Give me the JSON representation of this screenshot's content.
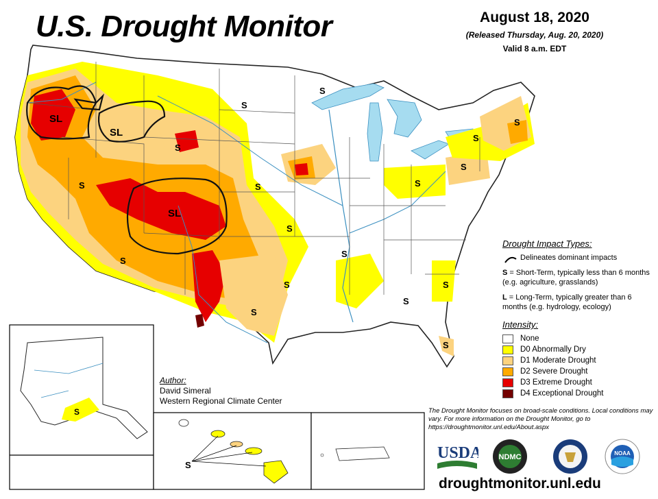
{
  "header": {
    "title": "U.S. Drought Monitor",
    "date": "August 18, 2020",
    "released": "(Released Thursday, Aug. 20, 2020)",
    "valid": "Valid 8 a.m. EDT"
  },
  "impact_types": {
    "heading": "Drought Impact Types:",
    "line_label": "Delineates dominant impacts",
    "short_term_code": "S",
    "short_term_text": "= Short-Term, typically less than 6 months (e.g. agriculture, grasslands)",
    "long_term_code": "L",
    "long_term_text": "= Long-Term, typically greater than 6 months (e.g. hydrology, ecology)"
  },
  "intensity": {
    "heading": "Intensity:",
    "levels": [
      {
        "label": "None",
        "color": "#ffffff"
      },
      {
        "label": "D0 Abnormally Dry",
        "color": "#ffff00"
      },
      {
        "label": "D1 Moderate Drought",
        "color": "#fcd37f"
      },
      {
        "label": "D2 Severe Drought",
        "color": "#ffaa00"
      },
      {
        "label": "D3 Extreme Drought",
        "color": "#e60000"
      },
      {
        "label": "D4 Exceptional Drought",
        "color": "#730000"
      }
    ]
  },
  "author": {
    "heading": "Author:",
    "name": "David Simeral",
    "org": "Western Regional Climate Center"
  },
  "note": "The Drought Monitor focuses on broad-scale conditions. Local conditions may vary. For more information on the Drought Monitor, go to https://droughtmonitor.unl.edu/About.aspx",
  "website": "droughtmonitor.unl.edu",
  "logos": {
    "usda": "USDA",
    "ndmc": "NDMC",
    "noaa": "NOAA"
  },
  "map_labels": {
    "sl": "SL",
    "s": "S"
  },
  "colors": {
    "water": "#a6dcf0",
    "d0": "#ffff00",
    "d1": "#fcd37f",
    "d2": "#ffaa00",
    "d3": "#e60000",
    "d4": "#730000"
  }
}
